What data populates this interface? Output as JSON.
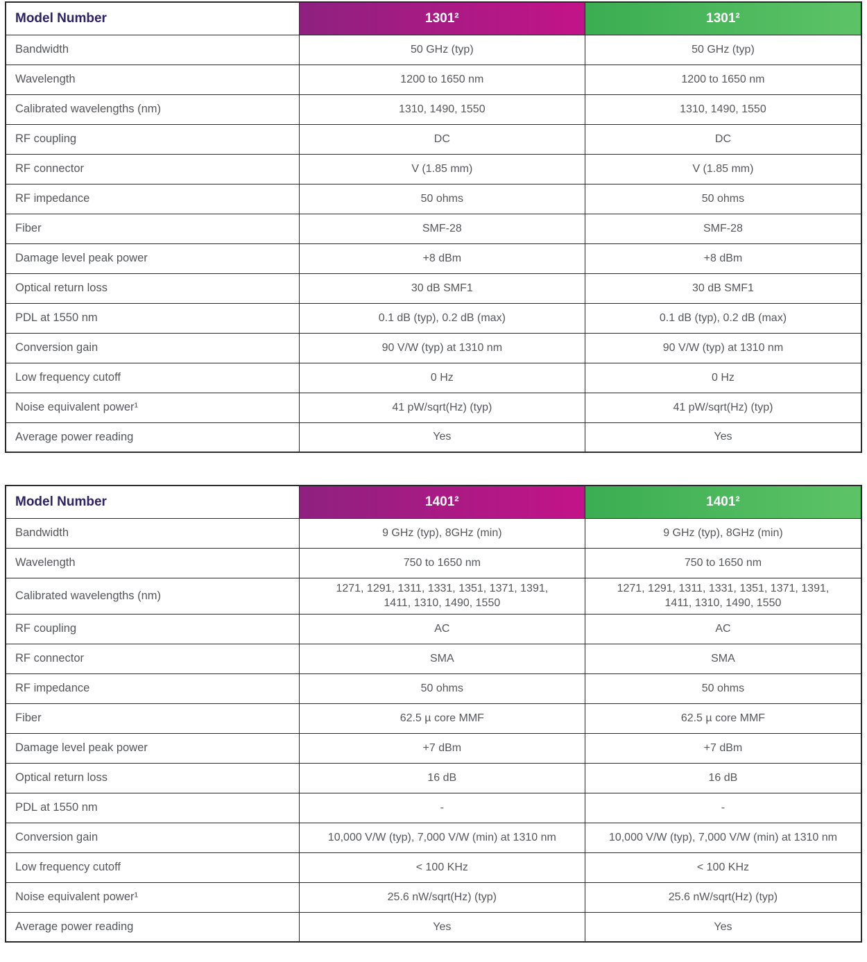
{
  "colors": {
    "purple_gradient_start": "#8E2180",
    "purple_gradient_end": "#C31389",
    "green_gradient_start": "#3BAD52",
    "green_gradient_end": "#5DC367",
    "header_text": "#FFFFFF",
    "model_number_label": "#2E2266",
    "body_text": "#54565A",
    "border": "#2A2A2A"
  },
  "tables": [
    {
      "header": {
        "label": "Model Number",
        "purple_model": "1301²",
        "green_model": "1301²"
      },
      "rows": [
        {
          "label": "Bandwidth",
          "purple": "50 GHz (typ)",
          "green": "50 GHz (typ)"
        },
        {
          "label": "Wavelength",
          "purple": "1200 to 1650 nm",
          "green": "1200 to 1650 nm"
        },
        {
          "label": "Calibrated wavelengths (nm)",
          "purple": "1310, 1490, 1550",
          "green": "1310, 1490, 1550"
        },
        {
          "label": "RF coupling",
          "purple": "DC",
          "green": "DC"
        },
        {
          "label": "RF connector",
          "purple": "V (1.85 mm)",
          "green": "V (1.85 mm)"
        },
        {
          "label": "RF impedance",
          "purple": "50 ohms",
          "green": "50 ohms"
        },
        {
          "label": "Fiber",
          "purple": "SMF-28",
          "green": "SMF-28"
        },
        {
          "label": "Damage level peak power",
          "purple": "+8 dBm",
          "green": "+8 dBm"
        },
        {
          "label": "Optical return loss",
          "purple": "30 dB SMF1",
          "green": "30 dB SMF1"
        },
        {
          "label": "PDL at 1550 nm",
          "purple": "0.1 dB (typ), 0.2 dB (max)",
          "green": "0.1 dB (typ), 0.2 dB (max)"
        },
        {
          "label": "Conversion gain",
          "purple": "90 V/W (typ) at 1310 nm",
          "green": "90 V/W (typ) at 1310 nm"
        },
        {
          "label": "Low frequency cutoff",
          "purple": "0 Hz",
          "green": "0 Hz"
        },
        {
          "label": "Noise equivalent power¹",
          "purple": "41 pW/sqrt(Hz) (typ)",
          "green": "41 pW/sqrt(Hz) (typ)"
        },
        {
          "label": "Average power reading",
          "purple": "Yes",
          "green": "Yes"
        }
      ]
    },
    {
      "header": {
        "label": "Model Number",
        "purple_model": "1401²",
        "green_model": "1401²"
      },
      "rows": [
        {
          "label": "Bandwidth",
          "purple": "9 GHz (typ), 8GHz (min)",
          "green": "9 GHz (typ), 8GHz (min)"
        },
        {
          "label": "Wavelength",
          "purple": "750 to 1650 nm",
          "green": "750 to 1650 nm"
        },
        {
          "label": "Calibrated wavelengths (nm)",
          "purple": "1271, 1291, 1311, 1331, 1351, 1371, 1391,\n1411, 1310, 1490, 1550",
          "green": "1271, 1291, 1311, 1331, 1351, 1371, 1391,\n1411, 1310, 1490, 1550"
        },
        {
          "label": "RF coupling",
          "purple": "AC",
          "green": "AC"
        },
        {
          "label": "RF connector",
          "purple": "SMA",
          "green": "SMA"
        },
        {
          "label": "RF impedance",
          "purple": "50 ohms",
          "green": "50 ohms"
        },
        {
          "label": "Fiber",
          "purple": "62.5 µ core MMF",
          "green": "62.5 µ core MMF"
        },
        {
          "label": "Damage level peak power",
          "purple": "+7 dBm",
          "green": "+7 dBm"
        },
        {
          "label": "Optical return loss",
          "purple": "16 dB",
          "green": "16 dB"
        },
        {
          "label": "PDL at 1550 nm",
          "purple": "-",
          "green": "-"
        },
        {
          "label": "Conversion gain",
          "purple": "10,000 V/W (typ), 7,000 V/W (min) at 1310 nm",
          "green": "10,000 V/W (typ), 7,000 V/W (min) at 1310 nm"
        },
        {
          "label": "Low frequency cutoff",
          "purple": "< 100 KHz",
          "green": "< 100 KHz"
        },
        {
          "label": "Noise equivalent power¹",
          "purple": "25.6 nW/sqrt(Hz) (typ)",
          "green": "25.6 nW/sqrt(Hz) (typ)"
        },
        {
          "label": "Average power reading",
          "purple": "Yes",
          "green": "Yes"
        }
      ]
    }
  ]
}
